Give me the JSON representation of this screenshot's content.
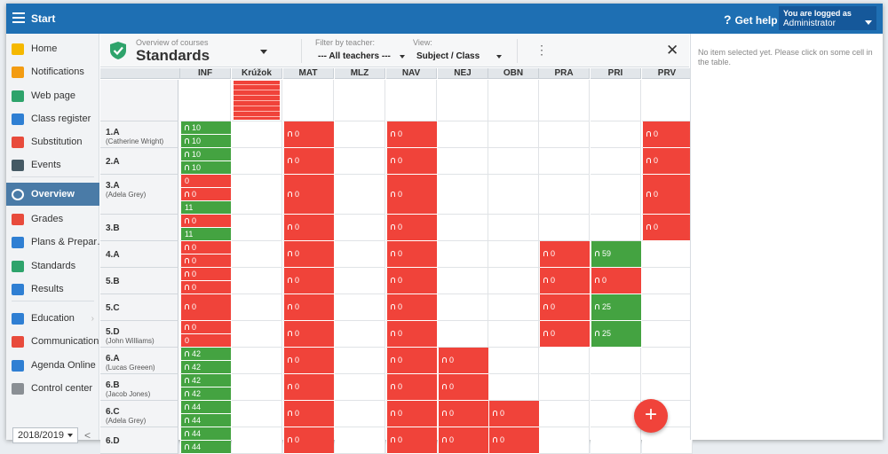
{
  "topbar": {
    "start_label": "Start",
    "help_label": "Get help",
    "logged_line1": "You are logged as",
    "logged_line2": "Administrator"
  },
  "sidebar": {
    "items": [
      {
        "label": "Home",
        "icon": "star-icon",
        "color": "#f5b800"
      },
      {
        "label": "Notifications",
        "icon": "envelope-icon",
        "color": "#f39c12"
      },
      {
        "label": "Web page",
        "icon": "home-icon",
        "color": "#2ea36b"
      },
      {
        "label": "Class register",
        "icon": "book-icon",
        "color": "#2f7fd3"
      },
      {
        "label": "Substitution",
        "icon": "user-swap-icon",
        "color": "#e84b3c"
      },
      {
        "label": "Events",
        "icon": "calendar-icon",
        "color": "#455a64"
      },
      {
        "label": "Overview",
        "icon": "check-circle-icon",
        "color": "#ffffff"
      },
      {
        "label": "Grades",
        "icon": "grades-icon",
        "color": "#e84b3c"
      },
      {
        "label": "Plans & Prepar…",
        "icon": "briefcase-icon",
        "color": "#2f7fd3"
      },
      {
        "label": "Standards",
        "icon": "shield-icon",
        "color": "#2ea36b"
      },
      {
        "label": "Results",
        "icon": "bar-chart-icon",
        "color": "#2f7fd3"
      },
      {
        "label": "Education",
        "icon": "education-icon",
        "color": "#2f7fd3"
      },
      {
        "label": "Communication",
        "icon": "chat-icon",
        "color": "#e84b3c"
      },
      {
        "label": "Agenda Online",
        "icon": "pen-icon",
        "color": "#2f7fd3"
      },
      {
        "label": "Control center",
        "icon": "gear-icon",
        "color": "#8a8f94"
      }
    ],
    "year": "2018/2019"
  },
  "header": {
    "subtitle": "Overview of courses",
    "title": "Standards",
    "filter_label": "Filter by teacher:",
    "filter_value": "--- All teachers ---",
    "view_label": "View:",
    "view_value": "Subject / Class"
  },
  "columns": [
    "INF",
    "Krúžok",
    "MAT",
    "MLZ",
    "NAV",
    "NEJ",
    "OBN",
    "PRA",
    "PRI",
    "PRV"
  ],
  "rows": [
    {
      "cls": "",
      "teacher": ""
    },
    {
      "cls": "1.A",
      "teacher": "(Catherine Wright)"
    },
    {
      "cls": "2.A",
      "teacher": ""
    },
    {
      "cls": "3.A",
      "teacher": "(Adela Grey)"
    },
    {
      "cls": "3.B",
      "teacher": ""
    },
    {
      "cls": "4.A",
      "teacher": ""
    },
    {
      "cls": "5.B",
      "teacher": ""
    },
    {
      "cls": "5.C",
      "teacher": ""
    },
    {
      "cls": "5.D",
      "teacher": "(John Williams)"
    },
    {
      "cls": "6.A",
      "teacher": "(Lucas Greeen)"
    },
    {
      "cls": "6.B",
      "teacher": "(Jacob Jones)"
    },
    {
      "cls": "6.C",
      "teacher": "(Adela Grey)"
    },
    {
      "cls": "6.D",
      "teacher": ""
    }
  ],
  "cells": [
    {
      "row": 1,
      "col": 0,
      "parts": [
        {
          "v": "10",
          "c": "green",
          "bell": true
        },
        {
          "v": "10",
          "c": "green",
          "bell": true
        }
      ]
    },
    {
      "row": 1,
      "col": 2,
      "parts": [
        {
          "v": "0",
          "c": "red",
          "bell": true
        }
      ]
    },
    {
      "row": 1,
      "col": 4,
      "parts": [
        {
          "v": "0",
          "c": "red",
          "bell": true
        }
      ]
    },
    {
      "row": 1,
      "col": 9,
      "parts": [
        {
          "v": "0",
          "c": "red",
          "bell": true
        }
      ]
    },
    {
      "row": 2,
      "col": 0,
      "parts": [
        {
          "v": "10",
          "c": "green",
          "bell": true
        },
        {
          "v": "10",
          "c": "green",
          "bell": true
        }
      ]
    },
    {
      "row": 2,
      "col": 2,
      "parts": [
        {
          "v": "0",
          "c": "red",
          "bell": true
        }
      ]
    },
    {
      "row": 2,
      "col": 4,
      "parts": [
        {
          "v": "0",
          "c": "red",
          "bell": true
        }
      ]
    },
    {
      "row": 2,
      "col": 9,
      "parts": [
        {
          "v": "0",
          "c": "red",
          "bell": true
        }
      ]
    },
    {
      "row": 3,
      "col": 0,
      "parts": [
        {
          "v": "0",
          "c": "red",
          "bell": false
        },
        {
          "v": "0",
          "c": "red",
          "bell": true
        },
        {
          "v": "11",
          "c": "green",
          "bell": false
        }
      ]
    },
    {
      "row": 3,
      "col": 2,
      "parts": [
        {
          "v": "0",
          "c": "red",
          "bell": true
        }
      ]
    },
    {
      "row": 3,
      "col": 4,
      "parts": [
        {
          "v": "0",
          "c": "red",
          "bell": true
        }
      ]
    },
    {
      "row": 3,
      "col": 9,
      "parts": [
        {
          "v": "0",
          "c": "red",
          "bell": true
        }
      ]
    },
    {
      "row": 4,
      "col": 0,
      "parts": [
        {
          "v": "0",
          "c": "red",
          "bell": true
        },
        {
          "v": "11",
          "c": "green",
          "bell": false
        }
      ]
    },
    {
      "row": 4,
      "col": 2,
      "parts": [
        {
          "v": "0",
          "c": "red",
          "bell": true
        }
      ]
    },
    {
      "row": 4,
      "col": 4,
      "parts": [
        {
          "v": "0",
          "c": "red",
          "bell": true
        }
      ]
    },
    {
      "row": 4,
      "col": 9,
      "parts": [
        {
          "v": "0",
          "c": "red",
          "bell": true
        }
      ]
    },
    {
      "row": 5,
      "col": 0,
      "parts": [
        {
          "v": "0",
          "c": "red",
          "bell": true
        },
        {
          "v": "0",
          "c": "red",
          "bell": true
        }
      ]
    },
    {
      "row": 5,
      "col": 2,
      "parts": [
        {
          "v": "0",
          "c": "red",
          "bell": true
        }
      ]
    },
    {
      "row": 5,
      "col": 4,
      "parts": [
        {
          "v": "0",
          "c": "red",
          "bell": true
        }
      ]
    },
    {
      "row": 5,
      "col": 7,
      "parts": [
        {
          "v": "0",
          "c": "red",
          "bell": true
        }
      ]
    },
    {
      "row": 5,
      "col": 8,
      "parts": [
        {
          "v": "59",
          "c": "green",
          "bell": true
        }
      ]
    },
    {
      "row": 6,
      "col": 0,
      "parts": [
        {
          "v": "0",
          "c": "red",
          "bell": true
        },
        {
          "v": "0",
          "c": "red",
          "bell": true
        }
      ]
    },
    {
      "row": 6,
      "col": 2,
      "parts": [
        {
          "v": "0",
          "c": "red",
          "bell": true
        }
      ]
    },
    {
      "row": 6,
      "col": 4,
      "parts": [
        {
          "v": "0",
          "c": "red",
          "bell": true
        }
      ]
    },
    {
      "row": 6,
      "col": 7,
      "parts": [
        {
          "v": "0",
          "c": "red",
          "bell": true
        }
      ]
    },
    {
      "row": 6,
      "col": 8,
      "parts": [
        {
          "v": "0",
          "c": "red",
          "bell": true
        }
      ]
    },
    {
      "row": 7,
      "col": 0,
      "parts": [
        {
          "v": "0",
          "c": "red",
          "bell": true
        }
      ]
    },
    {
      "row": 7,
      "col": 2,
      "parts": [
        {
          "v": "0",
          "c": "red",
          "bell": true
        }
      ]
    },
    {
      "row": 7,
      "col": 4,
      "parts": [
        {
          "v": "0",
          "c": "red",
          "bell": true
        }
      ]
    },
    {
      "row": 7,
      "col": 7,
      "parts": [
        {
          "v": "0",
          "c": "red",
          "bell": true
        }
      ]
    },
    {
      "row": 7,
      "col": 8,
      "parts": [
        {
          "v": "25",
          "c": "green",
          "bell": true
        }
      ]
    },
    {
      "row": 8,
      "col": 0,
      "parts": [
        {
          "v": "0",
          "c": "red",
          "bell": true
        },
        {
          "v": "0",
          "c": "red",
          "bell": false
        }
      ]
    },
    {
      "row": 8,
      "col": 2,
      "parts": [
        {
          "v": "0",
          "c": "red",
          "bell": true
        }
      ]
    },
    {
      "row": 8,
      "col": 4,
      "parts": [
        {
          "v": "0",
          "c": "red",
          "bell": true
        }
      ]
    },
    {
      "row": 8,
      "col": 7,
      "parts": [
        {
          "v": "0",
          "c": "red",
          "bell": true
        }
      ]
    },
    {
      "row": 8,
      "col": 8,
      "parts": [
        {
          "v": "25",
          "c": "green",
          "bell": true
        }
      ]
    },
    {
      "row": 9,
      "col": 0,
      "parts": [
        {
          "v": "42",
          "c": "green",
          "bell": true
        },
        {
          "v": "42",
          "c": "green",
          "bell": true
        }
      ]
    },
    {
      "row": 9,
      "col": 2,
      "parts": [
        {
          "v": "0",
          "c": "red",
          "bell": true
        }
      ]
    },
    {
      "row": 9,
      "col": 4,
      "parts": [
        {
          "v": "0",
          "c": "red",
          "bell": true
        }
      ]
    },
    {
      "row": 9,
      "col": 5,
      "parts": [
        {
          "v": "0",
          "c": "red",
          "bell": true
        }
      ]
    },
    {
      "row": 10,
      "col": 0,
      "parts": [
        {
          "v": "42",
          "c": "green",
          "bell": true
        },
        {
          "v": "42",
          "c": "green",
          "bell": true
        }
      ]
    },
    {
      "row": 10,
      "col": 2,
      "parts": [
        {
          "v": "0",
          "c": "red",
          "bell": true
        }
      ]
    },
    {
      "row": 10,
      "col": 4,
      "parts": [
        {
          "v": "0",
          "c": "red",
          "bell": true
        }
      ]
    },
    {
      "row": 10,
      "col": 5,
      "parts": [
        {
          "v": "0",
          "c": "red",
          "bell": true
        }
      ]
    },
    {
      "row": 11,
      "col": 0,
      "parts": [
        {
          "v": "44",
          "c": "green",
          "bell": true
        },
        {
          "v": "44",
          "c": "green",
          "bell": true
        }
      ]
    },
    {
      "row": 11,
      "col": 2,
      "parts": [
        {
          "v": "0",
          "c": "red",
          "bell": true
        }
      ]
    },
    {
      "row": 11,
      "col": 4,
      "parts": [
        {
          "v": "0",
          "c": "red",
          "bell": true
        }
      ]
    },
    {
      "row": 11,
      "col": 5,
      "parts": [
        {
          "v": "0",
          "c": "red",
          "bell": true
        }
      ]
    },
    {
      "row": 11,
      "col": 6,
      "parts": [
        {
          "v": "0",
          "c": "red",
          "bell": true
        }
      ]
    },
    {
      "row": 12,
      "col": 0,
      "parts": [
        {
          "v": "44",
          "c": "green",
          "bell": true
        },
        {
          "v": "44",
          "c": "green",
          "bell": true
        }
      ]
    },
    {
      "row": 12,
      "col": 2,
      "parts": [
        {
          "v": "0",
          "c": "red",
          "bell": true
        }
      ]
    },
    {
      "row": 12,
      "col": 4,
      "parts": [
        {
          "v": "0",
          "c": "red",
          "bell": true
        }
      ]
    },
    {
      "row": 12,
      "col": 5,
      "parts": [
        {
          "v": "0",
          "c": "red",
          "bell": true
        }
      ]
    },
    {
      "row": 12,
      "col": 6,
      "parts": [
        {
          "v": "0",
          "c": "red",
          "bell": true
        }
      ]
    }
  ],
  "right_panel": {
    "message": "No item selected yet. Please click on some cell in the table."
  },
  "fab_label": "+",
  "colors": {
    "topbar": "#1e6fb3",
    "red": "#f0433a",
    "green": "#44a341",
    "active": "#4a7ba7"
  }
}
